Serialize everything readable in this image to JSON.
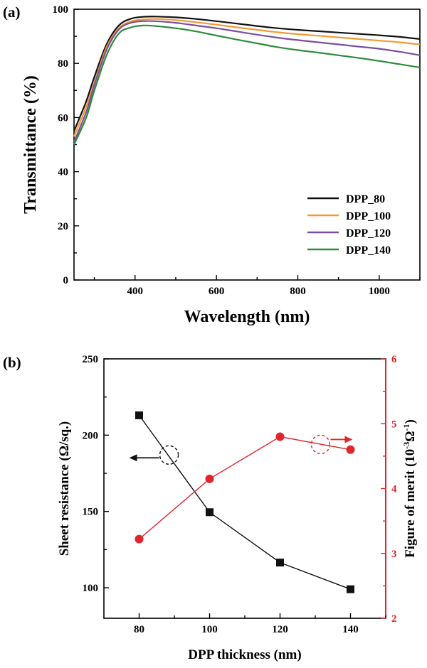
{
  "chart_data": [
    {
      "panel_label": "(a)",
      "type": "line",
      "xlabel": "Wavelength (nm)",
      "ylabel": "Transmittance (%)",
      "xlim": [
        250,
        1100
      ],
      "ylim": [
        0,
        100
      ],
      "xticks": [
        400,
        600,
        800,
        1000
      ],
      "yticks": [
        0,
        20,
        40,
        60,
        80,
        100
      ],
      "legend_position": "bottom-right",
      "grid": false,
      "series": [
        {
          "name": "DPP_80",
          "color": "#111111",
          "x": [
            250,
            280,
            300,
            330,
            360,
            390,
            420,
            450,
            500,
            550,
            600,
            650,
            700,
            750,
            800,
            850,
            900,
            950,
            1000,
            1050,
            1100
          ],
          "y": [
            55,
            66,
            75,
            87,
            94,
            96.5,
            97.2,
            97.3,
            97,
            96.4,
            95.6,
            94.7,
            93.8,
            93,
            92.4,
            91.9,
            91.4,
            90.9,
            90.4,
            89.8,
            89
          ]
        },
        {
          "name": "DPP_100",
          "color": "#f39a32",
          "x": [
            250,
            280,
            300,
            330,
            360,
            390,
            420,
            450,
            500,
            550,
            600,
            650,
            700,
            750,
            800,
            850,
            900,
            950,
            1000,
            1050,
            1100
          ],
          "y": [
            53,
            64,
            73,
            86,
            93,
            95.5,
            96.2,
            96.4,
            96,
            95.2,
            94.3,
            93.3,
            92.4,
            91.5,
            90.8,
            90.2,
            89.6,
            89,
            88.4,
            87.8,
            87
          ]
        },
        {
          "name": "DPP_120",
          "color": "#7a4fa0",
          "x": [
            250,
            280,
            300,
            330,
            360,
            390,
            420,
            450,
            500,
            550,
            600,
            650,
            700,
            750,
            800,
            850,
            900,
            950,
            1000,
            1050,
            1100
          ],
          "y": [
            51,
            62,
            72,
            85,
            92.5,
            95,
            95.6,
            95.6,
            95,
            94,
            93,
            91.8,
            90.6,
            89.5,
            88.6,
            87.8,
            87,
            86.2,
            85.4,
            84.3,
            83
          ]
        },
        {
          "name": "DPP_140",
          "color": "#2e8b3c",
          "x": [
            250,
            280,
            300,
            330,
            360,
            390,
            420,
            450,
            500,
            550,
            600,
            650,
            700,
            750,
            800,
            850,
            900,
            950,
            1000,
            1050,
            1100
          ],
          "y": [
            50,
            60,
            70,
            83,
            91,
            93.3,
            94,
            93.8,
            93,
            91.8,
            90.3,
            88.8,
            87.4,
            86,
            84.9,
            84,
            83,
            82,
            80.9,
            79.7,
            78.5
          ]
        }
      ]
    },
    {
      "panel_label": "(b)",
      "type": "line",
      "xlabel": "DPP thickness (nm)",
      "ylabel_left": "Sheet resistance (Ω/sq.)",
      "ylabel_right_base": "Figure of merit (10",
      "ylabel_right_sup1": "-3",
      "ylabel_right_mid": "Ω",
      "ylabel_right_sup2": "-1",
      "ylabel_right_end": ")",
      "xlim": [
        70,
        150
      ],
      "xticks": [
        80,
        100,
        120,
        140
      ],
      "ylim_left": [
        80,
        250
      ],
      "yticks_left": [
        100,
        150,
        200,
        250
      ],
      "ylim_right": [
        2,
        6
      ],
      "yticks_right": [
        2,
        3,
        4,
        5,
        6
      ],
      "grid": false,
      "series": [
        {
          "axis": "left",
          "color": "#111111",
          "marker": "square",
          "x": [
            80,
            100,
            120,
            140
          ],
          "y": [
            213,
            149.5,
            116.5,
            99
          ]
        },
        {
          "axis": "right",
          "color": "#e0262c",
          "marker": "circle",
          "x": [
            80,
            100,
            120,
            140
          ],
          "y": [
            3.22,
            4.15,
            4.8,
            4.6
          ]
        }
      ]
    }
  ]
}
